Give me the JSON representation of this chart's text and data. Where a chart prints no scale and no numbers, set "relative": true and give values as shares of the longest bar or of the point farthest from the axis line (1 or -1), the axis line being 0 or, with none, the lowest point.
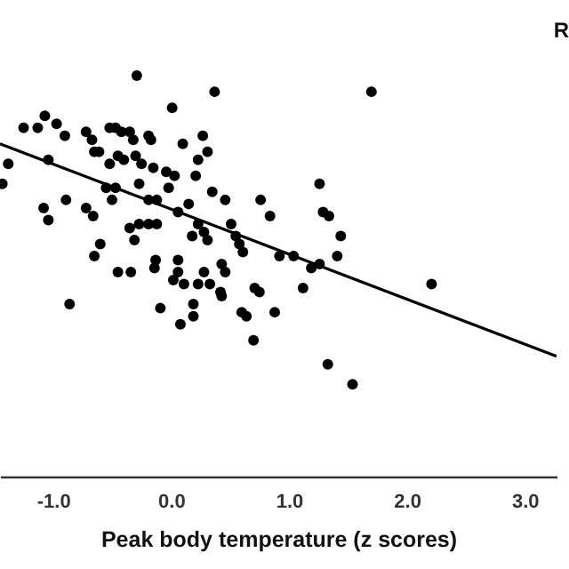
{
  "chart_data": {
    "type": "scatter",
    "relative": true,
    "xlabel": "Peak body temperature (z scores)",
    "annotations": [
      "R"
    ],
    "xlim": [
      -1.45,
      3.27
    ],
    "xticks": [
      {
        "value": -1,
        "label": "-1.0"
      },
      {
        "value": 0,
        "label": "0.0"
      },
      {
        "value": 1,
        "label": "1.0"
      },
      {
        "value": 2,
        "label": "2.0"
      },
      {
        "value": 3,
        "label": "3.0"
      }
    ],
    "series": [
      {
        "marker": "circle",
        "color": "#000000",
        "x": [
          -0.29,
          0.37,
          1.7,
          0.01,
          -1.07,
          -1.25,
          -1.13,
          -0.97,
          -0.9,
          -0.72,
          -0.67,
          -0.65,
          -0.61,
          -0.52,
          -0.47,
          -0.42,
          -0.35,
          -0.32,
          -0.19,
          -0.17,
          0.1,
          0.27,
          0.31,
          0.23,
          -1.38,
          -1.43,
          -1.04,
          -0.52,
          -0.45,
          -0.4,
          -0.3,
          -0.25,
          -0.15,
          -0.04,
          0.03,
          0.21,
          -0.55,
          -0.47,
          -0.5,
          -0.27,
          -0.19,
          -0.12,
          -0.02,
          0.15,
          0.35,
          0.46,
          0.76,
          0.84,
          1.26,
          1.29,
          1.34,
          1.44,
          1.41,
          -1.08,
          -1.04,
          -0.89,
          -0.72,
          -0.66,
          -0.35,
          -0.27,
          -0.19,
          -0.12,
          -0.31,
          0.06,
          0.23,
          0.28,
          0.31,
          0.18,
          0.51,
          0.55,
          0.58,
          0.61,
          -0.6,
          -0.65,
          -0.13,
          0.06,
          0.43,
          0.92,
          1.04,
          1.26,
          -0.86,
          -0.45,
          -0.34,
          -0.14,
          0.06,
          0.02,
          0.11,
          0.23,
          0.28,
          0.33,
          0.46,
          0.42,
          0.43,
          0.71,
          0.75,
          1.12,
          1.19,
          2.21,
          -0.09,
          0.08,
          0.19,
          0.19,
          0.6,
          0.64,
          0.88,
          0.7,
          1.33,
          1.54
        ],
        "values": [
          1.0,
          0.96,
          0.96,
          0.92,
          0.9,
          0.87,
          0.87,
          0.88,
          0.85,
          0.86,
          0.84,
          0.81,
          0.81,
          0.87,
          0.87,
          0.86,
          0.86,
          0.84,
          0.85,
          0.84,
          0.83,
          0.85,
          0.81,
          0.79,
          0.78,
          0.73,
          0.79,
          0.78,
          0.8,
          0.79,
          0.8,
          0.78,
          0.77,
          0.76,
          0.75,
          0.75,
          0.72,
          0.72,
          0.69,
          0.73,
          0.69,
          0.69,
          0.72,
          0.68,
          0.71,
          0.69,
          0.69,
          0.65,
          0.73,
          0.66,
          0.65,
          0.6,
          0.55,
          0.67,
          0.64,
          0.69,
          0.67,
          0.65,
          0.62,
          0.63,
          0.63,
          0.63,
          0.59,
          0.66,
          0.63,
          0.61,
          0.59,
          0.6,
          0.63,
          0.6,
          0.58,
          0.56,
          0.58,
          0.55,
          0.54,
          0.54,
          0.53,
          0.55,
          0.55,
          0.53,
          0.43,
          0.51,
          0.51,
          0.52,
          0.51,
          0.49,
          0.48,
          0.48,
          0.51,
          0.48,
          0.51,
          0.46,
          0.45,
          0.47,
          0.46,
          0.47,
          0.52,
          0.48,
          0.42,
          0.38,
          0.43,
          0.4,
          0.41,
          0.4,
          0.41,
          0.34,
          0.28,
          0.23
        ]
      },
      {
        "type": "line",
        "color": "#000000",
        "x": [
          -1.45,
          3.27
        ],
        "values": [
          0.83,
          0.3
        ]
      }
    ]
  }
}
